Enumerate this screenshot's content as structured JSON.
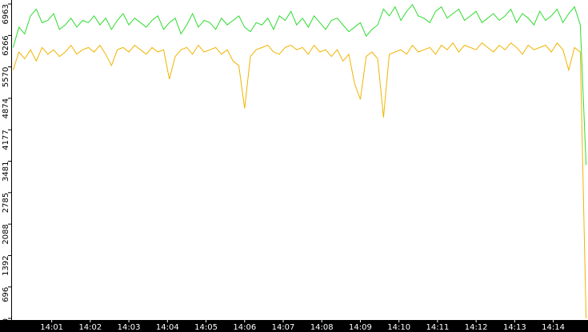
{
  "chart_data": {
    "type": "line",
    "x": [
      0,
      0.15,
      0.3,
      0.45,
      0.6,
      0.75,
      0.9,
      1.05,
      1.2,
      1.35,
      1.5,
      1.65,
      1.8,
      1.95,
      2.1,
      2.25,
      2.4,
      2.55,
      2.7,
      2.85,
      3,
      3.15,
      3.3,
      3.45,
      3.6,
      3.75,
      3.9,
      4.05,
      4.2,
      4.35,
      4.5,
      4.65,
      4.8,
      4.95,
      5.1,
      5.25,
      5.4,
      5.55,
      5.7,
      5.85,
      6,
      6.15,
      6.3,
      6.45,
      6.6,
      6.75,
      6.9,
      7.05,
      7.2,
      7.35,
      7.5,
      7.65,
      7.8,
      7.95,
      8.1,
      8.25,
      8.4,
      8.55,
      8.7,
      8.85,
      9,
      9.15,
      9.3,
      9.45,
      9.6,
      9.75,
      9.9,
      10.05,
      10.2,
      10.35,
      10.5,
      10.65,
      10.8,
      10.95,
      11.1,
      11.25,
      11.4,
      11.55,
      11.7,
      11.85,
      12,
      12.15,
      12.3,
      12.45,
      12.6,
      12.75,
      12.9,
      13.05,
      13.2,
      13.35,
      13.5,
      13.65,
      13.8,
      13.95,
      14.1,
      14.25,
      14.4,
      14.55,
      14.7,
      14.85
    ],
    "series": [
      {
        "color": "#2edc2e",
        "values": [
          6000,
          6450,
          6300,
          6700,
          6850,
          6550,
          6600,
          6750,
          6400,
          6500,
          6650,
          6450,
          6600,
          6550,
          6700,
          6500,
          6650,
          6400,
          6600,
          6750,
          6500,
          6650,
          6550,
          6450,
          6600,
          6700,
          6400,
          6550,
          6650,
          6300,
          6500,
          6750,
          6450,
          6600,
          6550,
          6400,
          6650,
          6500,
          6600,
          6700,
          6450,
          6350,
          6550,
          6500,
          6650,
          6400,
          6700,
          6600,
          6800,
          6500,
          6650,
          6450,
          6700,
          6550,
          6400,
          6600,
          6650,
          6500,
          6350,
          6450,
          6550,
          6250,
          6400,
          6500,
          6850,
          6700,
          6900,
          6600,
          6800,
          6950,
          6700,
          6650,
          6550,
          6800,
          6900,
          6650,
          6750,
          6850,
          6600,
          6700,
          6800,
          6550,
          6650,
          6750,
          6600,
          6700,
          6850,
          6550,
          6750,
          6650,
          6500,
          6800,
          6600,
          6700,
          6850,
          6550,
          6750,
          6900,
          6500,
          3400
        ]
      },
      {
        "color": "#f0b400",
        "values": [
          5500,
          5900,
          5750,
          5950,
          5700,
          6000,
          5850,
          5950,
          5800,
          5900,
          6050,
          5850,
          5950,
          6000,
          5900,
          6050,
          5850,
          5600,
          5950,
          6000,
          5900,
          6050,
          5950,
          5850,
          6000,
          5900,
          5950,
          5300,
          5800,
          5950,
          6000,
          5850,
          6050,
          5900,
          5950,
          6000,
          5850,
          5950,
          5700,
          5600,
          4650,
          5800,
          5950,
          6000,
          6050,
          5900,
          5850,
          6000,
          6050,
          5950,
          6000,
          5850,
          6050,
          5900,
          5950,
          5800,
          5950,
          5700,
          5850,
          5200,
          4850,
          5800,
          5900,
          5750,
          4450,
          5850,
          5900,
          5950,
          5850,
          6050,
          5900,
          5950,
          6000,
          5850,
          6050,
          5950,
          6100,
          5900,
          6050,
          6000,
          5950,
          6100,
          6000,
          5900,
          6050,
          5950,
          6100,
          6000,
          5850,
          6050,
          5950,
          6000,
          6050,
          5900,
          6100,
          5950,
          5500,
          6000,
          5900,
          0
        ]
      }
    ],
    "xlim": [
      -0.05,
      14.9
    ],
    "xticks": [
      {
        "value": 1,
        "label": "14:01"
      },
      {
        "value": 2,
        "label": "14:02"
      },
      {
        "value": 3,
        "label": "14:03"
      },
      {
        "value": 4,
        "label": "14:04"
      },
      {
        "value": 5,
        "label": "14:05"
      },
      {
        "value": 6,
        "label": "14:06"
      },
      {
        "value": 7,
        "label": "14:07"
      },
      {
        "value": 8,
        "label": "14:08"
      },
      {
        "value": 9,
        "label": "14:09"
      },
      {
        "value": 10,
        "label": "14:10"
      },
      {
        "value": 11,
        "label": "14:11"
      },
      {
        "value": 12,
        "label": "14:12"
      },
      {
        "value": 13,
        "label": "14:13"
      },
      {
        "value": 14,
        "label": "14:14"
      }
    ],
    "ylim": [
      0,
      6963
    ],
    "yticks": [
      0,
      696,
      1392,
      2088,
      2785,
      3481,
      4177,
      4874,
      5570,
      6266,
      6963
    ]
  }
}
